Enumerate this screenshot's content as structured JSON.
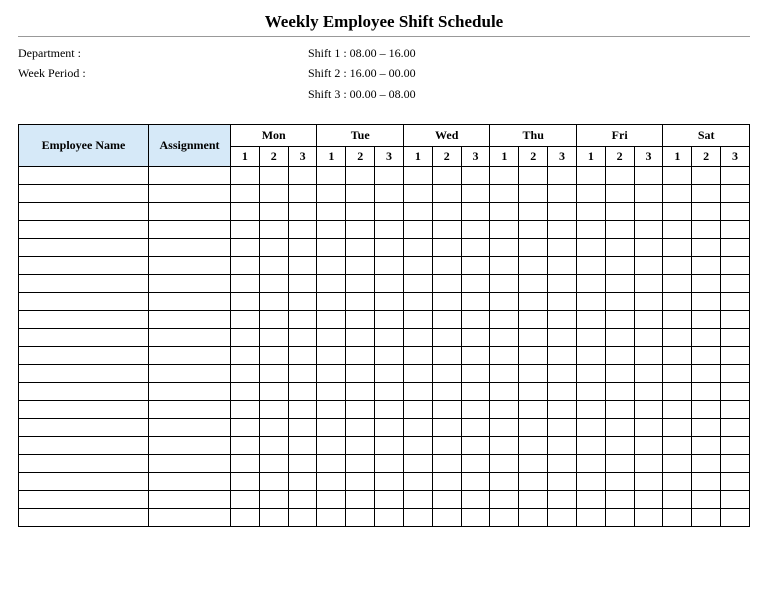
{
  "title": "Weekly Employee Shift Schedule",
  "info": {
    "department_label": "Department    :",
    "week_period_label": "Week  Period :",
    "shift1": "Shift 1 : 08.00  –  16.00",
    "shift2": "Shift 2 : 16.00  –  00.00",
    "shift3": "Shift 3 : 00.00  –  08.00"
  },
  "columns": {
    "employee_name": "Employee Name",
    "assignment": "Assignment"
  },
  "days": [
    "Mon",
    "Tue",
    "Wed",
    "Thu",
    "Fri",
    "Sat"
  ],
  "shifts": [
    "1",
    "2",
    "3"
  ],
  "row_count": 20,
  "style": {
    "header_bg": "#d6e9f8",
    "border_color": "#000000",
    "background": "#ffffff",
    "title_fontsize": 17,
    "body_fontsize": 12
  }
}
